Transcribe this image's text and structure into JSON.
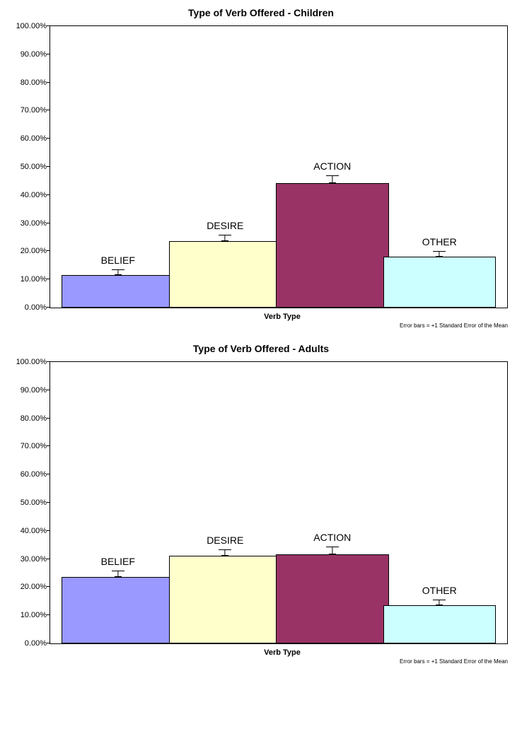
{
  "charts": [
    {
      "type": "bar",
      "title": "Type of Verb Offered - Children",
      "xlabel": "Verb Type",
      "footnote": "Error bars = +1 Standard Error of the Mean",
      "ylim": [
        0,
        100
      ],
      "ytick_step": 10,
      "ytick_format": "percent_2dp",
      "background_color": "#ffffff",
      "border_color": "#000000",
      "title_fontsize": 14,
      "label_fontsize": 11,
      "bar_label_fontsize": 14,
      "bars": [
        {
          "label": "BELIEF",
          "value": 11.5,
          "error": 1.8,
          "fill": "#9999ff",
          "stroke": "#000000"
        },
        {
          "label": "DESIRE",
          "value": 23.5,
          "error": 2.0,
          "fill": "#ffffcc",
          "stroke": "#000000"
        },
        {
          "label": "ACTION",
          "value": 44.0,
          "error": 2.5,
          "fill": "#993366",
          "stroke": "#000000"
        },
        {
          "label": "OTHER",
          "value": 18.0,
          "error": 1.8,
          "fill": "#ccffff",
          "stroke": "#000000"
        }
      ]
    },
    {
      "type": "bar",
      "title": "Type of Verb Offered - Adults",
      "xlabel": "Verb Type",
      "footnote": "Error bars = +1 Standard Error of the Mean",
      "ylim": [
        0,
        100
      ],
      "ytick_step": 10,
      "ytick_format": "percent_2dp",
      "background_color": "#ffffff",
      "border_color": "#000000",
      "title_fontsize": 14,
      "label_fontsize": 11,
      "bar_label_fontsize": 14,
      "bars": [
        {
          "label": "BELIEF",
          "value": 23.5,
          "error": 2.0,
          "fill": "#9999ff",
          "stroke": "#000000"
        },
        {
          "label": "DESIRE",
          "value": 31.0,
          "error": 2.0,
          "fill": "#ffffcc",
          "stroke": "#000000"
        },
        {
          "label": "ACTION",
          "value": 31.5,
          "error": 2.5,
          "fill": "#993366",
          "stroke": "#000000"
        },
        {
          "label": "OTHER",
          "value": 13.5,
          "error": 1.8,
          "fill": "#ccffff",
          "stroke": "#000000"
        }
      ]
    }
  ]
}
